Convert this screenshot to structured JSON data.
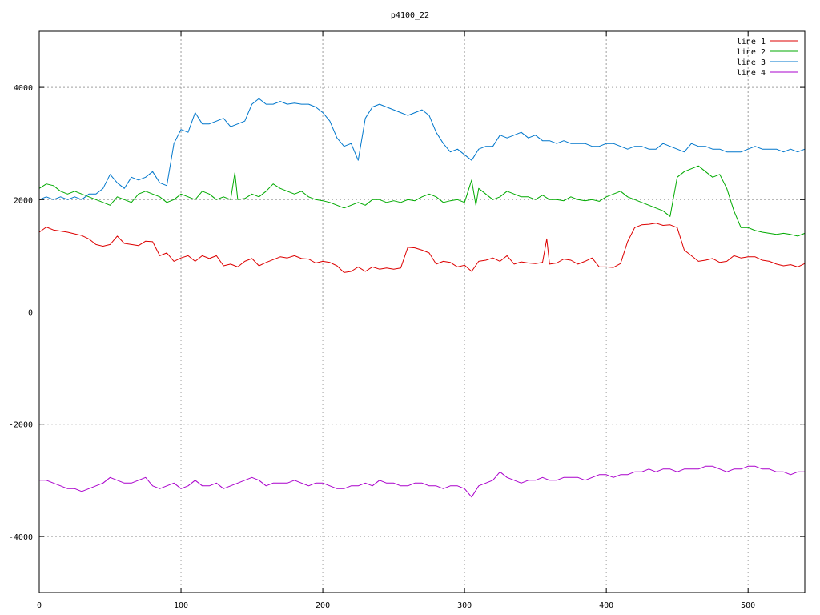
{
  "chart_data": {
    "type": "line",
    "title": "p4100_22",
    "xlabel": "",
    "ylabel": "",
    "xlim": [
      0,
      540
    ],
    "ylim": [
      -5000,
      5000
    ],
    "x_ticks": [
      0,
      100,
      200,
      300,
      400,
      500
    ],
    "y_ticks": [
      -4000,
      -2000,
      0,
      2000,
      4000
    ],
    "x_tick_labels": [
      "0",
      "100",
      "200",
      "300",
      "400",
      "500"
    ],
    "y_tick_labels": [
      "-4000",
      "-2000",
      "0",
      "2000",
      "4000"
    ],
    "grid": true,
    "legend_position": "top-right",
    "series": [
      {
        "name": "line 1",
        "color": "#dd0000",
        "x": [
          0,
          5,
          10,
          15,
          20,
          25,
          30,
          35,
          40,
          45,
          50,
          55,
          60,
          65,
          70,
          75,
          80,
          85,
          90,
          95,
          100,
          105,
          110,
          115,
          120,
          125,
          130,
          135,
          140,
          145,
          150,
          155,
          160,
          165,
          170,
          175,
          180,
          185,
          190,
          195,
          200,
          205,
          210,
          215,
          220,
          225,
          230,
          235,
          240,
          245,
          250,
          255,
          260,
          265,
          270,
          275,
          280,
          285,
          290,
          295,
          300,
          305,
          310,
          315,
          320,
          325,
          330,
          335,
          340,
          345,
          350,
          355,
          358,
          360,
          365,
          370,
          375,
          380,
          385,
          390,
          395,
          400,
          405,
          410,
          415,
          420,
          425,
          430,
          435,
          440,
          445,
          450,
          455,
          460,
          465,
          470,
          475,
          480,
          485,
          490,
          495,
          500,
          505,
          510,
          515,
          520,
          525,
          530,
          535,
          540
        ],
        "values": [
          1420,
          1510,
          1460,
          1440,
          1420,
          1390,
          1360,
          1300,
          1200,
          1170,
          1200,
          1350,
          1220,
          1200,
          1180,
          1260,
          1250,
          1000,
          1050,
          900,
          960,
          1000,
          900,
          1000,
          950,
          1000,
          820,
          850,
          800,
          900,
          950,
          820,
          880,
          930,
          980,
          960,
          1000,
          950,
          940,
          870,
          900,
          880,
          820,
          700,
          720,
          800,
          720,
          800,
          760,
          780,
          760,
          780,
          1150,
          1140,
          1100,
          1050,
          850,
          900,
          880,
          800,
          830,
          720,
          900,
          920,
          960,
          900,
          1000,
          850,
          890,
          870,
          860,
          880,
          1300,
          850,
          870,
          940,
          920,
          850,
          900,
          960,
          800,
          800,
          790,
          860,
          1250,
          1500,
          1550,
          1560,
          1580,
          1540,
          1550,
          1500,
          1100,
          1000,
          900,
          920,
          950,
          880,
          900,
          1000,
          960,
          980,
          980,
          920,
          900,
          850,
          820,
          840,
          800,
          860
        ]
      },
      {
        "name": "line 2",
        "color": "#00aa00",
        "x": [
          0,
          5,
          10,
          15,
          20,
          25,
          30,
          35,
          40,
          45,
          50,
          55,
          60,
          65,
          70,
          75,
          80,
          85,
          90,
          95,
          100,
          105,
          110,
          115,
          120,
          125,
          130,
          135,
          138,
          140,
          145,
          150,
          155,
          160,
          165,
          170,
          175,
          180,
          185,
          190,
          195,
          200,
          205,
          210,
          215,
          220,
          225,
          230,
          235,
          240,
          245,
          250,
          255,
          260,
          265,
          270,
          275,
          280,
          285,
          290,
          295,
          300,
          305,
          308,
          310,
          315,
          320,
          325,
          330,
          335,
          340,
          345,
          350,
          355,
          360,
          365,
          370,
          375,
          380,
          385,
          390,
          395,
          400,
          405,
          410,
          415,
          420,
          425,
          430,
          435,
          440,
          445,
          450,
          455,
          460,
          465,
          470,
          475,
          480,
          485,
          490,
          495,
          500,
          505,
          510,
          515,
          520,
          525,
          530,
          535,
          540
        ],
        "values": [
          2200,
          2280,
          2250,
          2150,
          2100,
          2150,
          2100,
          2050,
          2000,
          1950,
          1900,
          2050,
          2000,
          1950,
          2100,
          2150,
          2100,
          2050,
          1950,
          2000,
          2100,
          2050,
          2000,
          2150,
          2100,
          2000,
          2050,
          2000,
          2480,
          2000,
          2020,
          2100,
          2050,
          2150,
          2280,
          2200,
          2150,
          2100,
          2150,
          2050,
          2000,
          1980,
          1950,
          1900,
          1850,
          1900,
          1950,
          1900,
          2000,
          2000,
          1950,
          1980,
          1950,
          2000,
          1980,
          2050,
          2100,
          2050,
          1950,
          1980,
          2000,
          1950,
          2350,
          1900,
          2200,
          2100,
          2000,
          2050,
          2150,
          2100,
          2050,
          2050,
          2000,
          2080,
          2000,
          2000,
          1980,
          2050,
          2000,
          1980,
          2000,
          1970,
          2050,
          2100,
          2150,
          2050,
          2000,
          1950,
          1900,
          1850,
          1800,
          1700,
          2400,
          2500,
          2550,
          2600,
          2500,
          2400,
          2450,
          2200,
          1800,
          1500,
          1500,
          1450,
          1420,
          1400,
          1380,
          1400,
          1380,
          1350,
          1400
        ]
      },
      {
        "name": "line 3",
        "color": "#0077cc",
        "x": [
          0,
          5,
          10,
          15,
          20,
          25,
          30,
          35,
          40,
          45,
          50,
          55,
          60,
          65,
          70,
          75,
          80,
          85,
          90,
          95,
          100,
          105,
          110,
          115,
          120,
          125,
          130,
          135,
          140,
          145,
          150,
          155,
          160,
          165,
          170,
          175,
          180,
          185,
          190,
          195,
          200,
          205,
          210,
          215,
          220,
          225,
          230,
          235,
          240,
          245,
          250,
          255,
          260,
          265,
          270,
          275,
          280,
          285,
          290,
          295,
          300,
          305,
          310,
          315,
          320,
          325,
          330,
          335,
          340,
          345,
          350,
          355,
          360,
          365,
          370,
          375,
          380,
          385,
          390,
          395,
          400,
          405,
          410,
          415,
          420,
          425,
          430,
          435,
          440,
          445,
          450,
          455,
          460,
          465,
          470,
          475,
          480,
          485,
          490,
          495,
          500,
          505,
          510,
          515,
          520,
          525,
          530,
          535,
          540
        ],
        "values": [
          2000,
          2050,
          2000,
          2050,
          2000,
          2050,
          2000,
          2100,
          2100,
          2200,
          2450,
          2300,
          2200,
          2400,
          2350,
          2400,
          2500,
          2300,
          2250,
          3000,
          3250,
          3200,
          3550,
          3350,
          3350,
          3400,
          3450,
          3300,
          3350,
          3400,
          3700,
          3800,
          3700,
          3700,
          3750,
          3700,
          3720,
          3700,
          3700,
          3650,
          3550,
          3400,
          3100,
          2950,
          3000,
          2700,
          3450,
          3650,
          3700,
          3650,
          3600,
          3550,
          3500,
          3550,
          3600,
          3500,
          3200,
          3000,
          2850,
          2900,
          2800,
          2700,
          2900,
          2950,
          2950,
          3150,
          3100,
          3150,
          3200,
          3100,
          3150,
          3050,
          3050,
          3000,
          3050,
          3000,
          3000,
          3000,
          2950,
          2950,
          3000,
          3000,
          2950,
          2900,
          2950,
          2950,
          2900,
          2900,
          3000,
          2950,
          2900,
          2850,
          3000,
          2950,
          2950,
          2900,
          2900,
          2850,
          2850,
          2850,
          2900,
          2950,
          2900,
          2900,
          2900,
          2850,
          2900,
          2850,
          2900
        ]
      },
      {
        "name": "line 4",
        "color": "#aa00cc",
        "x": [
          0,
          5,
          10,
          15,
          20,
          25,
          30,
          35,
          40,
          45,
          50,
          55,
          60,
          65,
          70,
          75,
          80,
          85,
          90,
          95,
          100,
          105,
          110,
          115,
          120,
          125,
          130,
          135,
          140,
          145,
          150,
          155,
          160,
          165,
          170,
          175,
          180,
          185,
          190,
          195,
          200,
          205,
          210,
          215,
          220,
          225,
          230,
          235,
          240,
          245,
          250,
          255,
          260,
          265,
          270,
          275,
          280,
          285,
          290,
          295,
          300,
          305,
          310,
          315,
          320,
          325,
          330,
          335,
          340,
          345,
          350,
          355,
          360,
          365,
          370,
          375,
          380,
          385,
          390,
          395,
          400,
          405,
          410,
          415,
          420,
          425,
          430,
          435,
          440,
          445,
          450,
          455,
          460,
          465,
          470,
          475,
          480,
          485,
          490,
          495,
          500,
          505,
          510,
          515,
          520,
          525,
          530,
          535,
          540
        ],
        "values": [
          -3000,
          -3000,
          -3050,
          -3100,
          -3150,
          -3150,
          -3200,
          -3150,
          -3100,
          -3050,
          -2950,
          -3000,
          -3050,
          -3050,
          -3000,
          -2950,
          -3100,
          -3150,
          -3100,
          -3050,
          -3150,
          -3100,
          -3000,
          -3100,
          -3100,
          -3050,
          -3150,
          -3100,
          -3050,
          -3000,
          -2950,
          -3000,
          -3100,
          -3050,
          -3050,
          -3050,
          -3000,
          -3050,
          -3100,
          -3050,
          -3050,
          -3100,
          -3150,
          -3150,
          -3100,
          -3100,
          -3050,
          -3100,
          -3000,
          -3050,
          -3050,
          -3100,
          -3100,
          -3050,
          -3050,
          -3100,
          -3100,
          -3150,
          -3100,
          -3100,
          -3150,
          -3300,
          -3100,
          -3050,
          -3000,
          -2850,
          -2950,
          -3000,
          -3050,
          -3000,
          -3000,
          -2950,
          -3000,
          -3000,
          -2950,
          -2950,
          -2950,
          -3000,
          -2950,
          -2900,
          -2900,
          -2950,
          -2900,
          -2900,
          -2850,
          -2850,
          -2800,
          -2850,
          -2800,
          -2800,
          -2850,
          -2800,
          -2800,
          -2800,
          -2750,
          -2750,
          -2800,
          -2850,
          -2800,
          -2800,
          -2750,
          -2750,
          -2800,
          -2800,
          -2850,
          -2850,
          -2900,
          -2850,
          -2850
        ]
      }
    ]
  }
}
